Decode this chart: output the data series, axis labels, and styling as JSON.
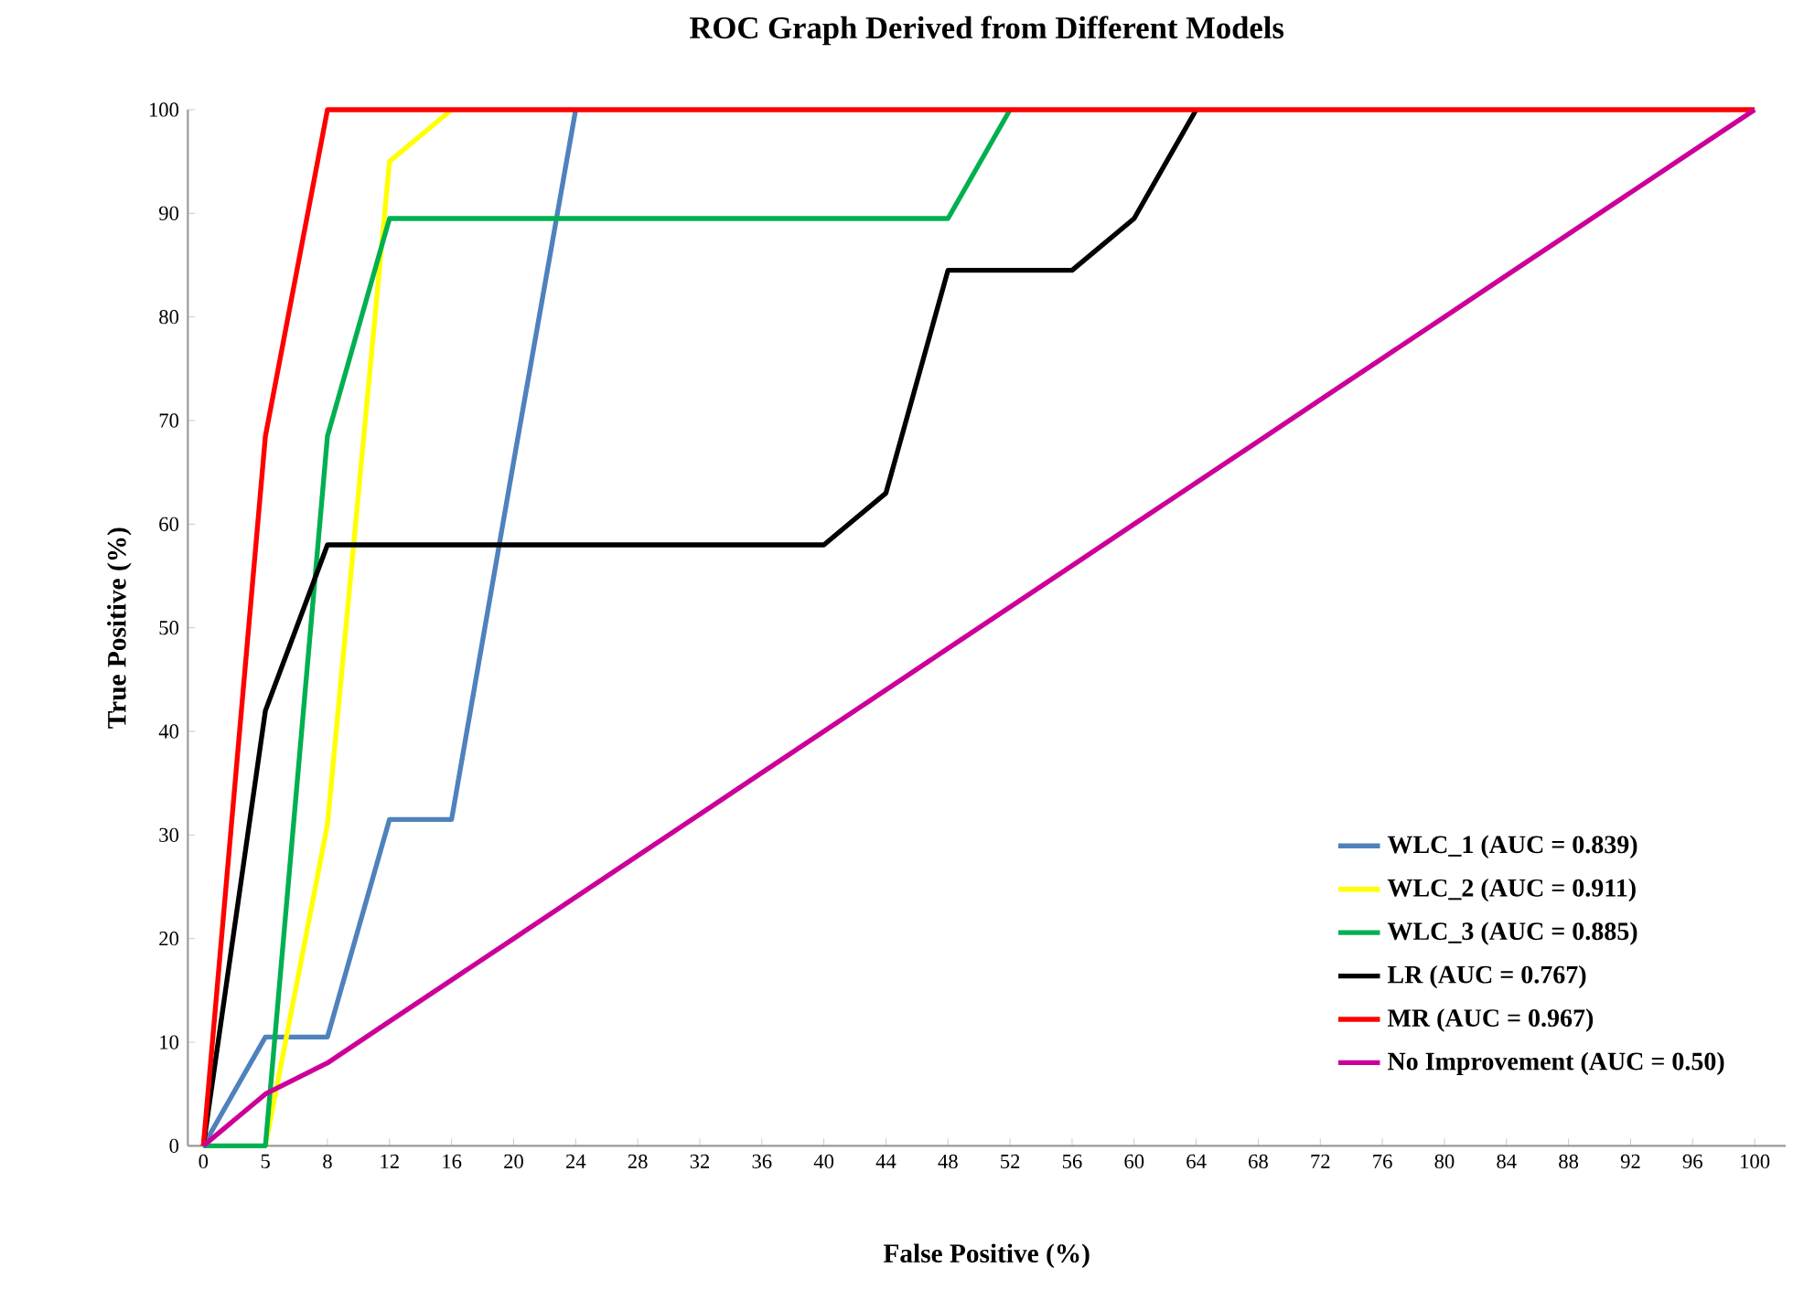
{
  "chart_data": {
    "type": "line",
    "title": "ROC Graph Derived from Different Models",
    "xlabel": "False Positive (%)",
    "ylabel": "True Positive (%)",
    "categories": [
      "0",
      "5",
      "8",
      "12",
      "16",
      "20",
      "24",
      "28",
      "32",
      "36",
      "40",
      "44",
      "48",
      "52",
      "56",
      "60",
      "64",
      "68",
      "72",
      "76",
      "80",
      "84",
      "88",
      "92",
      "96",
      "100"
    ],
    "series": [
      {
        "name": "WLC_1 (AUC = 0.839)",
        "color": "#4f81bd",
        "values": [
          0,
          10.5,
          10.5,
          31.5,
          31.5,
          66,
          100,
          null,
          null,
          null,
          null,
          null,
          null,
          null,
          null,
          null,
          null,
          null,
          null,
          null,
          null,
          null,
          null,
          null,
          null,
          null
        ]
      },
      {
        "name": "WLC_2 (AUC = 0.911)",
        "color": "#ffff00",
        "values": [
          null,
          0,
          31,
          95,
          100,
          null,
          null,
          null,
          null,
          null,
          null,
          null,
          null,
          null,
          null,
          null,
          null,
          null,
          null,
          null,
          null,
          null,
          null,
          null,
          null,
          null
        ]
      },
      {
        "name": "WLC_3 (AUC = 0.885)",
        "color": "#00b050",
        "values": [
          0,
          0,
          68.5,
          89.5,
          89.5,
          89.5,
          89.5,
          89.5,
          89.5,
          89.5,
          89.5,
          89.5,
          89.5,
          100,
          null,
          null,
          null,
          null,
          null,
          null,
          null,
          null,
          null,
          null,
          null,
          null
        ]
      },
      {
        "name": "LR (AUC = 0.767)",
        "color": "#000000",
        "values": [
          0,
          42,
          58,
          58,
          58,
          58,
          58,
          58,
          58,
          58,
          58,
          63,
          84.5,
          84.5,
          84.5,
          89.5,
          100,
          null,
          null,
          null,
          null,
          null,
          null,
          null,
          null,
          null
        ]
      },
      {
        "name": "MR (AUC = 0.967)",
        "color": "#ff0000",
        "values": [
          0,
          68.5,
          100,
          100,
          100,
          100,
          100,
          100,
          100,
          100,
          100,
          100,
          100,
          100,
          100,
          100,
          100,
          100,
          100,
          100,
          100,
          100,
          100,
          100,
          100,
          100
        ]
      },
      {
        "name": "No Improvement (AUC = 0.50)",
        "color": "#cc0099",
        "values": [
          0,
          5,
          8,
          12,
          16,
          20,
          24,
          28,
          32,
          36,
          40,
          44,
          48,
          52,
          56,
          60,
          64,
          68,
          72,
          76,
          80,
          84,
          88,
          92,
          96,
          100
        ]
      }
    ],
    "ylim": [
      0,
      100
    ],
    "yticks": [
      0,
      10,
      20,
      30,
      40,
      50,
      60,
      70,
      80,
      90,
      100
    ],
    "legend": "bottom right",
    "grid": false,
    "marker": "none",
    "line_style": "solid"
  }
}
